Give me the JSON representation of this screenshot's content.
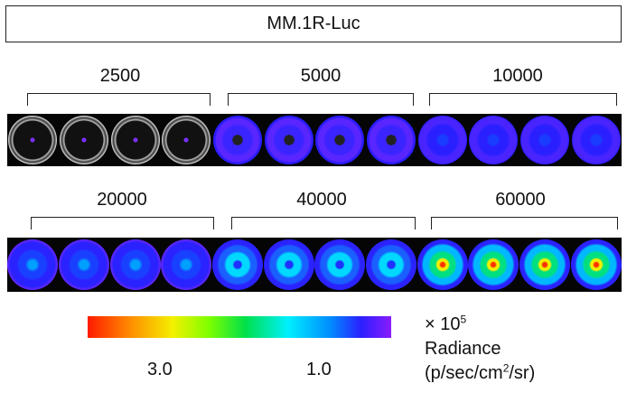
{
  "title": "MM.1R-Luc",
  "rows": [
    {
      "groups": [
        {
          "label": "2500",
          "well_signal": "faint"
        },
        {
          "label": "5000",
          "well_signal": "low"
        },
        {
          "label": "10000",
          "well_signal": "low-medium"
        }
      ]
    },
    {
      "groups": [
        {
          "label": "20000",
          "well_signal": "medium"
        },
        {
          "label": "40000",
          "well_signal": "medium-high"
        },
        {
          "label": "60000",
          "well_signal": "high"
        }
      ]
    }
  ],
  "colorbar": {
    "tick_left": "3.0",
    "tick_right": "1.0",
    "scale_prefix": "× 10",
    "scale_exp": "5",
    "label": "Radiance",
    "unit_prefix": "(p/sec/cm",
    "unit_exp": "2",
    "unit_suffix": "/sr)"
  },
  "colors": {
    "high": "#ff1a00",
    "mid": "#00e04a",
    "low": "#2a20ff"
  }
}
